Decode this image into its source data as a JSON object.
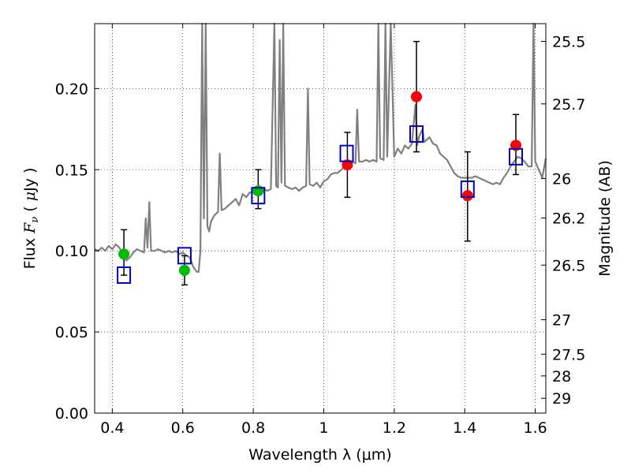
{
  "chart_data": {
    "type": "scatter",
    "xlabel": "Wavelength  λ (μm)",
    "ylabel": "Flux  F_ν ( μJy )",
    "ylabel_parts": [
      "Flux  ",
      "F",
      "ν",
      "  ( ",
      "μ",
      "Jy )"
    ],
    "y2label": "Magnitude (AB)",
    "xlim": [
      0.35,
      1.63
    ],
    "ylim": [
      0.0,
      0.24
    ],
    "grid": true,
    "x_ticks": [
      0.4,
      0.6,
      0.8,
      1.0,
      1.2,
      1.4,
      1.6
    ],
    "x_tick_labels": [
      "0.4",
      "0.6",
      "0.8",
      "1",
      "1.2",
      "1.4",
      "1.6"
    ],
    "y_ticks": [
      0.0,
      0.05,
      0.1,
      0.15,
      0.2
    ],
    "y_tick_labels": [
      "0.00",
      "0.05",
      "0.10",
      "0.15",
      "0.20"
    ],
    "mag_ticks": [
      25.5,
      25.7,
      26,
      26.2,
      26.5,
      27,
      27.5,
      28,
      29
    ],
    "mag_tick_labels": [
      "25.5",
      "25.7",
      "26",
      "26.2",
      "26.5",
      "27",
      "27.5",
      "28",
      "29"
    ],
    "series": [
      {
        "name": "model spectrum",
        "kind": "line",
        "color": "#808080",
        "points": [
          [
            0.35,
            0.101
          ],
          [
            0.36,
            0.1
          ],
          [
            0.37,
            0.102
          ],
          [
            0.38,
            0.1
          ],
          [
            0.39,
            0.103
          ],
          [
            0.4,
            0.101
          ],
          [
            0.41,
            0.104
          ],
          [
            0.42,
            0.102
          ],
          [
            0.43,
            0.098
          ],
          [
            0.44,
            0.094
          ],
          [
            0.45,
            0.096
          ],
          [
            0.46,
            0.099
          ],
          [
            0.47,
            0.101
          ],
          [
            0.48,
            0.1
          ],
          [
            0.49,
            0.099
          ],
          [
            0.495,
            0.12
          ],
          [
            0.5,
            0.102
          ],
          [
            0.505,
            0.13
          ],
          [
            0.51,
            0.1
          ],
          [
            0.52,
            0.1
          ],
          [
            0.53,
            0.101
          ],
          [
            0.54,
            0.1
          ],
          [
            0.55,
            0.099
          ],
          [
            0.56,
            0.1
          ],
          [
            0.57,
            0.099
          ],
          [
            0.58,
            0.1
          ],
          [
            0.59,
            0.098
          ],
          [
            0.6,
            0.099
          ],
          [
            0.61,
            0.097
          ],
          [
            0.62,
            0.096
          ],
          [
            0.63,
            0.09
          ],
          [
            0.64,
            0.087
          ],
          [
            0.645,
            0.087
          ],
          [
            0.65,
            0.1
          ],
          [
            0.655,
            0.24
          ],
          [
            0.66,
            0.12
          ],
          [
            0.665,
            0.24
          ],
          [
            0.67,
            0.115
          ],
          [
            0.675,
            0.112
          ],
          [
            0.68,
            0.118
          ],
          [
            0.69,
            0.122
          ],
          [
            0.7,
            0.124
          ],
          [
            0.705,
            0.16
          ],
          [
            0.71,
            0.125
          ],
          [
            0.72,
            0.126
          ],
          [
            0.73,
            0.128
          ],
          [
            0.74,
            0.13
          ],
          [
            0.75,
            0.132
          ],
          [
            0.76,
            0.128
          ],
          [
            0.77,
            0.135
          ],
          [
            0.78,
            0.133
          ],
          [
            0.79,
            0.136
          ],
          [
            0.8,
            0.136
          ],
          [
            0.81,
            0.137
          ],
          [
            0.82,
            0.136
          ],
          [
            0.83,
            0.138
          ],
          [
            0.84,
            0.137
          ],
          [
            0.85,
            0.138
          ],
          [
            0.86,
            0.24
          ],
          [
            0.865,
            0.14
          ],
          [
            0.87,
            0.139
          ],
          [
            0.875,
            0.23
          ],
          [
            0.88,
            0.142
          ],
          [
            0.885,
            0.24
          ],
          [
            0.89,
            0.14
          ],
          [
            0.9,
            0.139
          ],
          [
            0.91,
            0.138
          ],
          [
            0.92,
            0.139
          ],
          [
            0.93,
            0.137
          ],
          [
            0.94,
            0.139
          ],
          [
            0.95,
            0.14
          ],
          [
            0.955,
            0.2
          ],
          [
            0.96,
            0.141
          ],
          [
            0.97,
            0.14
          ],
          [
            0.98,
            0.142
          ],
          [
            0.99,
            0.139
          ],
          [
            1.0,
            0.143
          ],
          [
            1.01,
            0.144
          ],
          [
            1.02,
            0.147
          ],
          [
            1.03,
            0.148
          ],
          [
            1.04,
            0.148
          ],
          [
            1.05,
            0.15
          ],
          [
            1.06,
            0.152
          ],
          [
            1.07,
            0.154
          ],
          [
            1.08,
            0.155
          ],
          [
            1.09,
            0.154
          ],
          [
            1.095,
            0.187
          ],
          [
            1.1,
            0.155
          ],
          [
            1.11,
            0.155
          ],
          [
            1.12,
            0.156
          ],
          [
            1.13,
            0.155
          ],
          [
            1.14,
            0.156
          ],
          [
            1.15,
            0.155
          ],
          [
            1.155,
            0.24
          ],
          [
            1.16,
            0.157
          ],
          [
            1.17,
            0.156
          ],
          [
            1.175,
            0.24
          ],
          [
            1.18,
            0.158
          ],
          [
            1.19,
            0.24
          ],
          [
            1.2,
            0.158
          ],
          [
            1.21,
            0.163
          ],
          [
            1.22,
            0.16
          ],
          [
            1.23,
            0.165
          ],
          [
            1.24,
            0.163
          ],
          [
            1.25,
            0.166
          ],
          [
            1.26,
            0.19
          ],
          [
            1.265,
            0.165
          ],
          [
            1.27,
            0.17
          ],
          [
            1.28,
            0.175
          ],
          [
            1.285,
            0.167
          ],
          [
            1.3,
            0.17
          ],
          [
            1.31,
            0.166
          ],
          [
            1.32,
            0.165
          ],
          [
            1.33,
            0.16
          ],
          [
            1.34,
            0.158
          ],
          [
            1.35,
            0.156
          ],
          [
            1.36,
            0.152
          ],
          [
            1.37,
            0.148
          ],
          [
            1.38,
            0.146
          ],
          [
            1.39,
            0.145
          ],
          [
            1.4,
            0.145
          ],
          [
            1.41,
            0.145
          ],
          [
            1.42,
            0.145
          ],
          [
            1.43,
            0.146
          ],
          [
            1.44,
            0.145
          ],
          [
            1.45,
            0.144
          ],
          [
            1.46,
            0.143
          ],
          [
            1.47,
            0.142
          ],
          [
            1.48,
            0.141
          ],
          [
            1.49,
            0.142
          ],
          [
            1.5,
            0.141
          ],
          [
            1.51,
            0.145
          ],
          [
            1.52,
            0.148
          ],
          [
            1.53,
            0.152
          ],
          [
            1.54,
            0.155
          ],
          [
            1.55,
            0.158
          ],
          [
            1.56,
            0.157
          ],
          [
            1.57,
            0.155
          ],
          [
            1.58,
            0.152
          ],
          [
            1.59,
            0.152
          ],
          [
            1.595,
            0.24
          ],
          [
            1.6,
            0.155
          ],
          [
            1.61,
            0.15
          ],
          [
            1.62,
            0.145
          ],
          [
            1.63,
            0.157
          ]
        ]
      },
      {
        "name": "observed (green)",
        "kind": "points",
        "color": "#00bb00",
        "points": [
          {
            "x": 0.433,
            "y": 0.098,
            "err_low": 0.085,
            "err_high": 0.113
          },
          {
            "x": 0.605,
            "y": 0.088,
            "err_low": 0.079,
            "err_high": 0.097
          },
          {
            "x": 0.814,
            "y": 0.137,
            "err_low": 0.126,
            "err_high": 0.15
          }
        ]
      },
      {
        "name": "observed (red)",
        "kind": "points",
        "color": "#ff0000",
        "points": [
          {
            "x": 1.067,
            "y": 0.153,
            "err_low": 0.133,
            "err_high": 0.173
          },
          {
            "x": 1.263,
            "y": 0.195,
            "err_low": 0.161,
            "err_high": 0.229
          },
          {
            "x": 1.408,
            "y": 0.134,
            "err_low": 0.106,
            "err_high": 0.161
          },
          {
            "x": 1.545,
            "y": 0.165,
            "err_low": 0.147,
            "err_high": 0.184
          }
        ]
      },
      {
        "name": "model photometry",
        "kind": "squares",
        "color": "#0000cc",
        "points": [
          {
            "x": 0.433,
            "y": 0.085
          },
          {
            "x": 0.605,
            "y": 0.097
          },
          {
            "x": 0.814,
            "y": 0.134
          },
          {
            "x": 1.065,
            "y": 0.16
          },
          {
            "x": 1.263,
            "y": 0.172
          },
          {
            "x": 1.408,
            "y": 0.138
          },
          {
            "x": 1.545,
            "y": 0.158
          }
        ]
      }
    ]
  }
}
